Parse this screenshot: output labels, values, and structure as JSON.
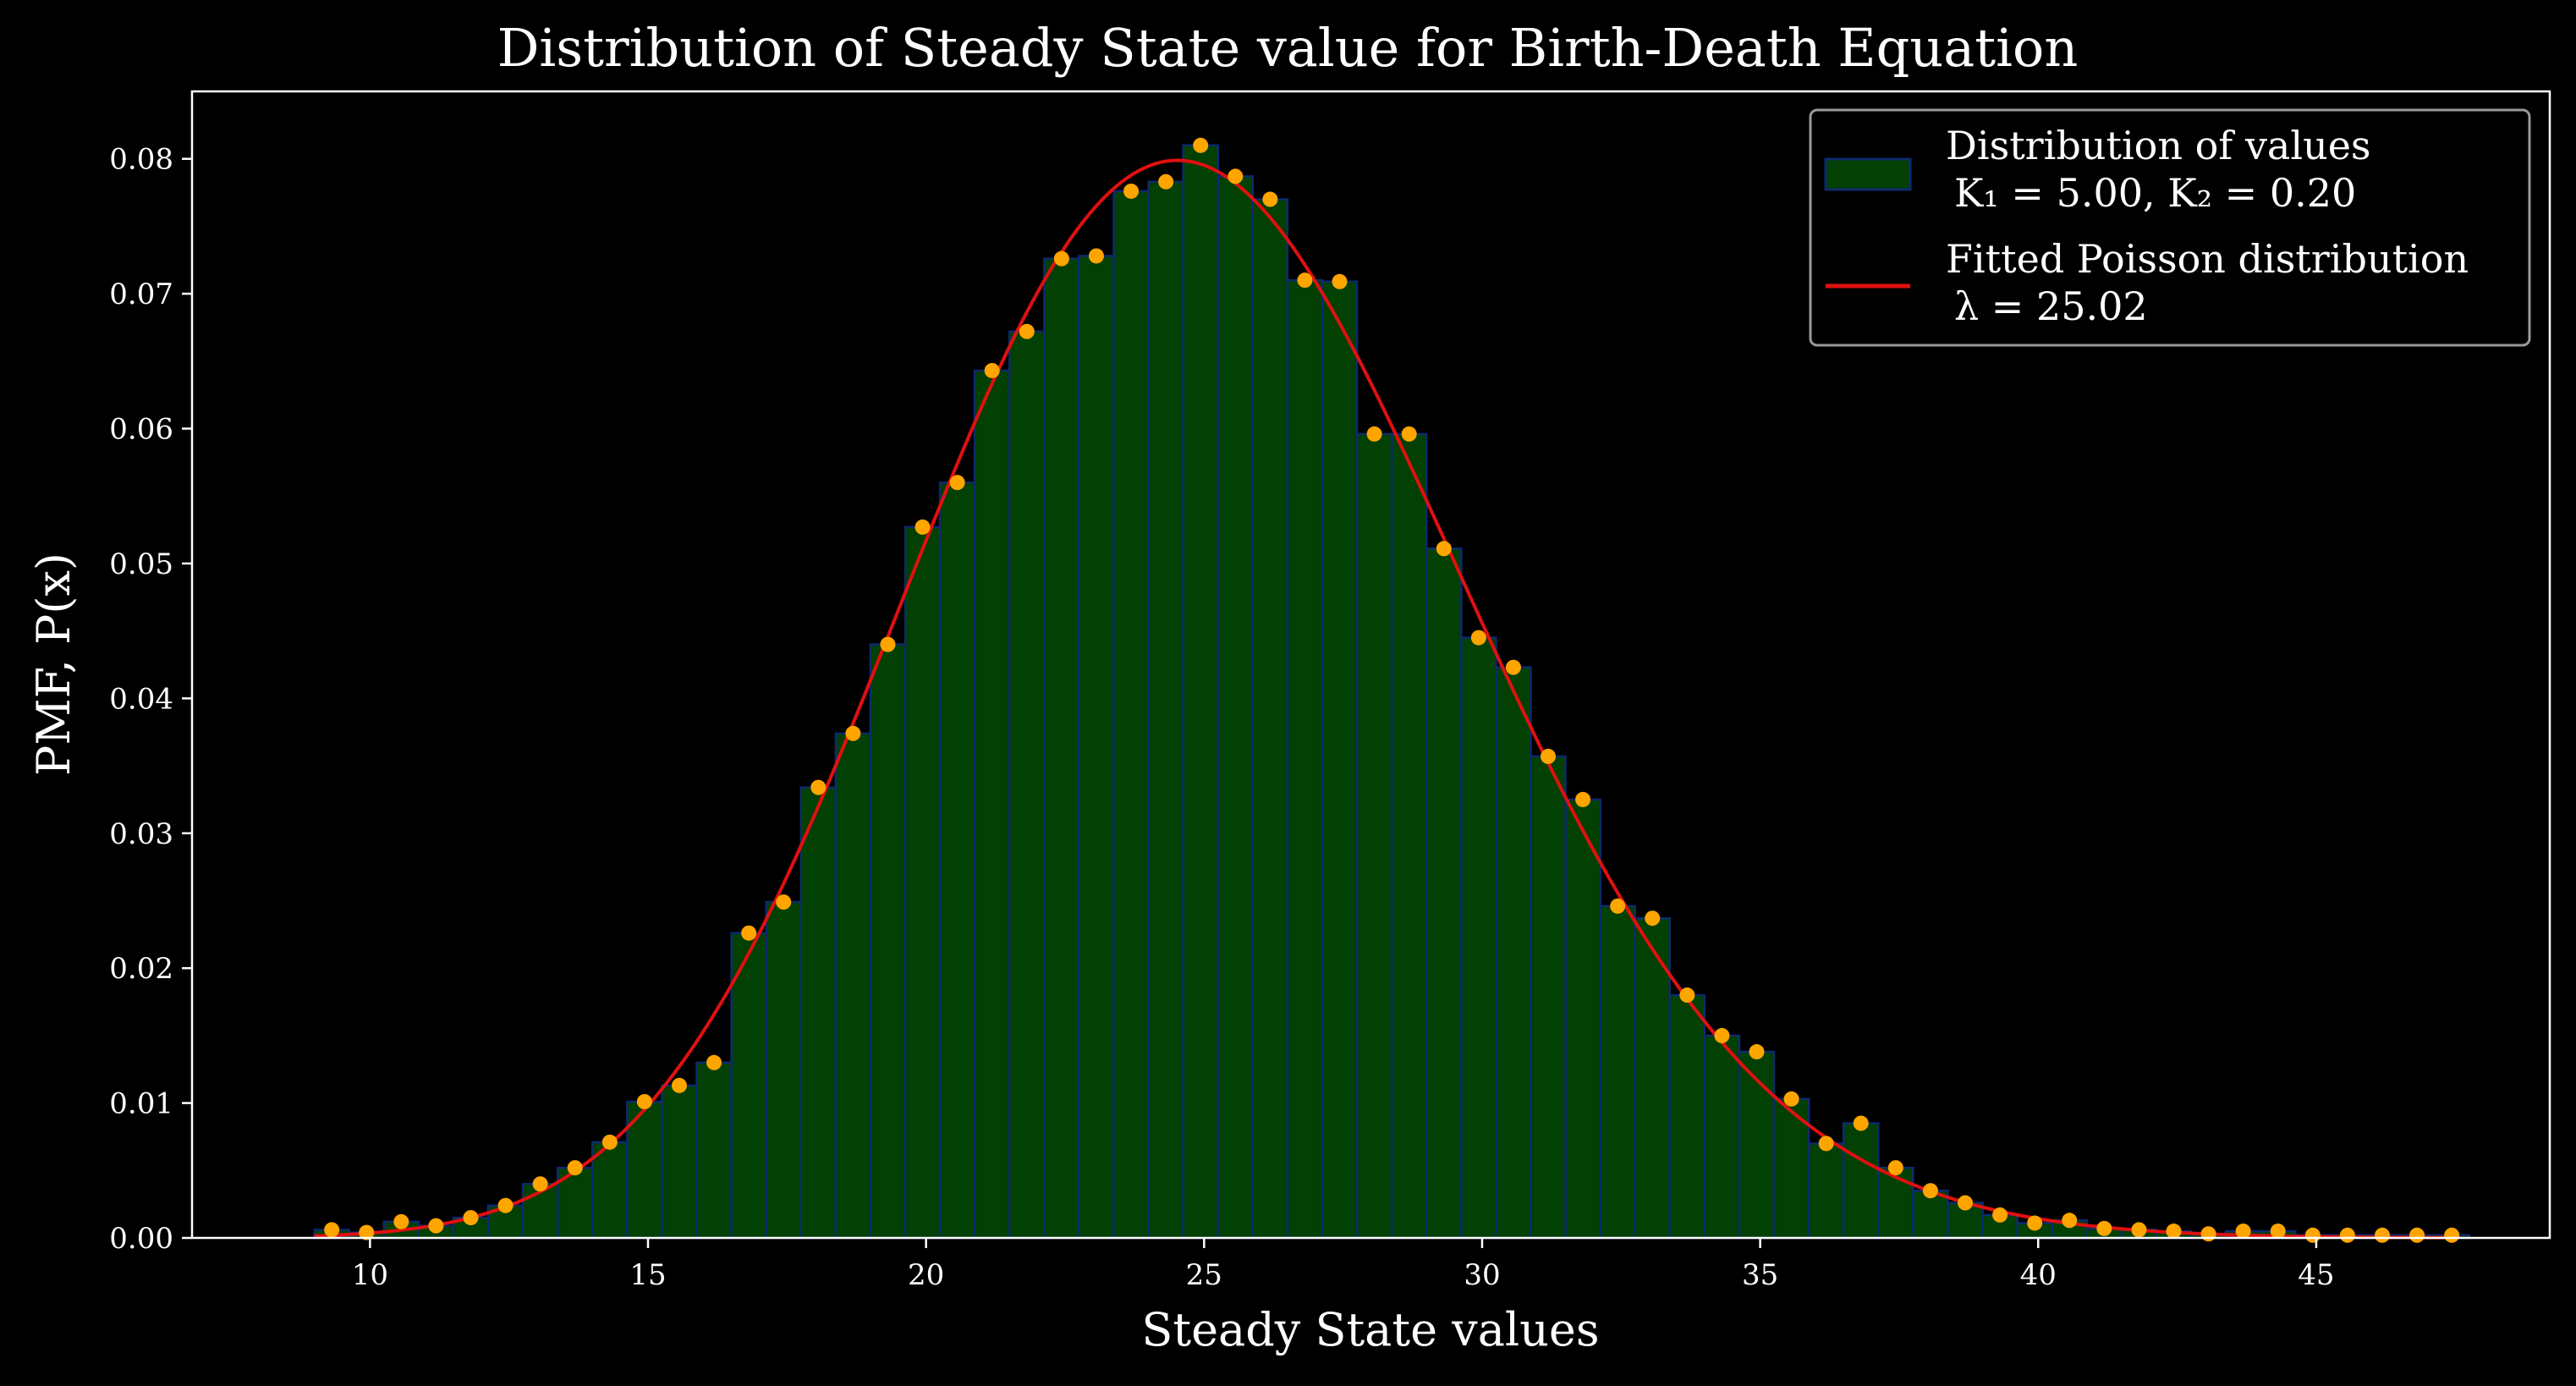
{
  "chart_data": {
    "type": "bar",
    "title": "Distribution of Steady State value for Birth-Death Equation",
    "xlabel": "Steady State values",
    "ylabel": "PMF,  P(x)",
    "xlim": [
      6.8,
      49.2
    ],
    "ylim": [
      0,
      0.085
    ],
    "xticks": [
      10,
      15,
      20,
      25,
      30,
      35,
      40,
      45
    ],
    "yticks": [
      0.0,
      0.01,
      0.02,
      0.03,
      0.04,
      0.05,
      0.06,
      0.07,
      0.08
    ],
    "grid": false,
    "legend_position": "top-right",
    "colors": {
      "background": "#000000",
      "bar_fill": "#024003",
      "bar_edge": "#0d2a6e",
      "points": "#ffa500",
      "fit_line": "#e01010",
      "axes": "#ffffff"
    },
    "bin_width": 0.625,
    "histogram": {
      "name": "Distribution of values",
      "name_detail": "K₁ = 5.00, K₂ = 0.20",
      "bin_start": [
        9.0,
        9.625,
        10.25,
        10.875,
        11.5,
        12.125,
        12.75,
        13.375,
        14.0,
        14.625,
        15.25,
        15.875,
        16.5,
        17.125,
        17.75,
        18.375,
        19.0,
        19.625,
        20.25,
        20.875,
        21.5,
        22.125,
        22.75,
        23.375,
        24.0,
        24.625,
        25.25,
        25.875,
        26.5,
        27.125,
        27.75,
        28.375,
        29.0,
        29.625,
        30.25,
        30.875,
        31.5,
        32.125,
        32.75,
        33.375,
        34.0,
        34.625,
        35.25,
        35.875,
        36.5,
        37.125,
        37.75,
        38.375,
        39.0,
        39.625,
        40.25,
        40.875,
        41.5,
        42.125,
        42.75,
        43.375,
        44.0,
        44.625,
        45.25,
        45.875,
        46.5,
        47.125
      ],
      "values": [
        0.0006,
        0.0004,
        0.0012,
        0.0009,
        0.0015,
        0.0024,
        0.004,
        0.0052,
        0.0071,
        0.0101,
        0.0113,
        0.013,
        0.0226,
        0.0249,
        0.0334,
        0.0374,
        0.044,
        0.0527,
        0.056,
        0.0643,
        0.0672,
        0.0726,
        0.0728,
        0.0776,
        0.0783,
        0.081,
        0.0787,
        0.077,
        0.071,
        0.0709,
        0.0596,
        0.0596,
        0.0511,
        0.0445,
        0.0423,
        0.0357,
        0.0325,
        0.0246,
        0.0237,
        0.018,
        0.015,
        0.0138,
        0.0103,
        0.007,
        0.0085,
        0.0052,
        0.0035,
        0.0026,
        0.0017,
        0.0011,
        0.0013,
        0.0007,
        0.0006,
        0.0005,
        0.0003,
        0.0005,
        0.0005,
        0.0002,
        0.0002,
        0.0002,
        0.0002,
        0.0002
      ]
    },
    "points": {
      "x": [
        9.3125,
        9.9375,
        10.5625,
        11.1875,
        11.8125,
        12.4375,
        13.0625,
        13.6875,
        14.3125,
        14.9375,
        15.5625,
        16.1875,
        16.8125,
        17.4375,
        18.0625,
        18.6875,
        19.3125,
        19.9375,
        20.5625,
        21.1875,
        21.8125,
        22.4375,
        23.0625,
        23.6875,
        24.3125,
        24.9375,
        25.5625,
        26.1875,
        26.8125,
        27.4375,
        28.0625,
        28.6875,
        29.3125,
        29.9375,
        30.5625,
        31.1875,
        31.8125,
        32.4375,
        33.0625,
        33.6875,
        34.3125,
        34.9375,
        35.5625,
        36.1875,
        36.8125,
        37.4375,
        38.0625,
        38.6875,
        39.3125,
        39.9375,
        40.5625,
        41.1875,
        41.8125,
        42.4375,
        43.0625,
        43.6875,
        44.3125,
        44.9375,
        45.5625,
        46.1875,
        46.8125,
        47.4375
      ],
      "y": [
        0.0006,
        0.0004,
        0.0012,
        0.0009,
        0.0015,
        0.0024,
        0.004,
        0.0052,
        0.0071,
        0.0101,
        0.0113,
        0.013,
        0.0226,
        0.0249,
        0.0334,
        0.0374,
        0.044,
        0.0527,
        0.056,
        0.0643,
        0.0672,
        0.0726,
        0.0728,
        0.0776,
        0.0783,
        0.081,
        0.0787,
        0.077,
        0.071,
        0.0709,
        0.0596,
        0.0596,
        0.0511,
        0.0445,
        0.0423,
        0.0357,
        0.0325,
        0.0246,
        0.0237,
        0.018,
        0.015,
        0.0138,
        0.0103,
        0.007,
        0.0085,
        0.0052,
        0.0035,
        0.0026,
        0.0017,
        0.0011,
        0.0013,
        0.0007,
        0.0006,
        0.0005,
        0.0003,
        0.0005,
        0.0005,
        0.0002,
        0.0002,
        0.0002,
        0.0002,
        0.0002
      ]
    },
    "fit": {
      "name": "Fitted Poisson distribution",
      "name_detail": "λ = 25.02",
      "distribution": "poisson",
      "lambda": 25.02,
      "x_range": [
        9.0,
        47.5
      ]
    }
  }
}
